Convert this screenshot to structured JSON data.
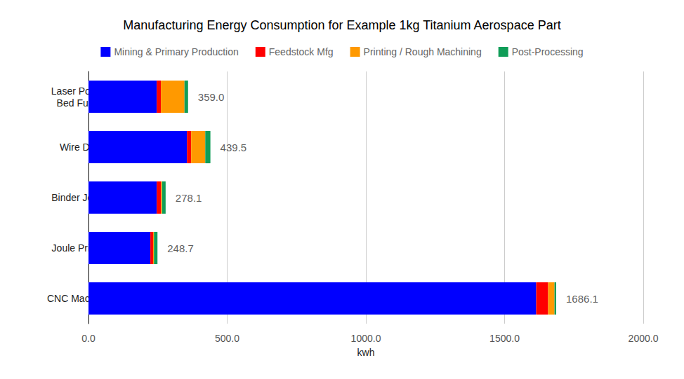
{
  "chart_data": {
    "type": "bar",
    "title": "Manufacturing Energy Consumption for Example 1kg Titanium Aerospace Part",
    "orientation": "horizontal",
    "stacked": true,
    "legend": "top",
    "grid": true,
    "xlabel": "kwh",
    "categories": [
      "Laser Powder\nBed Fusion",
      "Wire DED",
      "Binder Jetting",
      "Joule Printing",
      "CNC Machining"
    ],
    "series": [
      {
        "name": "Mining & Primary Production",
        "color": "#0000ff",
        "values": [
          246,
          355,
          246,
          223,
          1614
        ]
      },
      {
        "name": "Feedstock Mfg",
        "color": "#ff0000",
        "values": [
          15,
          15,
          15,
          10,
          43
        ]
      },
      {
        "name": "Printing / Rough Machining",
        "color": "#ff9900",
        "values": [
          85,
          51,
          4.1,
          3,
          23
        ]
      },
      {
        "name": "Post-Processing",
        "color": "#109d58",
        "values": [
          13,
          18.5,
          13,
          12.7,
          6.1
        ]
      }
    ],
    "totals": [
      359.0,
      439.5,
      278.1,
      248.7,
      1686.1
    ],
    "total_labels": [
      "359.0",
      "439.5",
      "278.1",
      "248.7",
      "1686.1"
    ],
    "xlim": [
      0,
      2000
    ],
    "xticks": [
      {
        "value": 0,
        "label": "0.0"
      },
      {
        "value": 500,
        "label": "500.0"
      },
      {
        "value": 1000,
        "label": "1000.0"
      },
      {
        "value": 1500,
        "label": "1500.0"
      },
      {
        "value": 2000,
        "label": "2000.0"
      }
    ]
  }
}
